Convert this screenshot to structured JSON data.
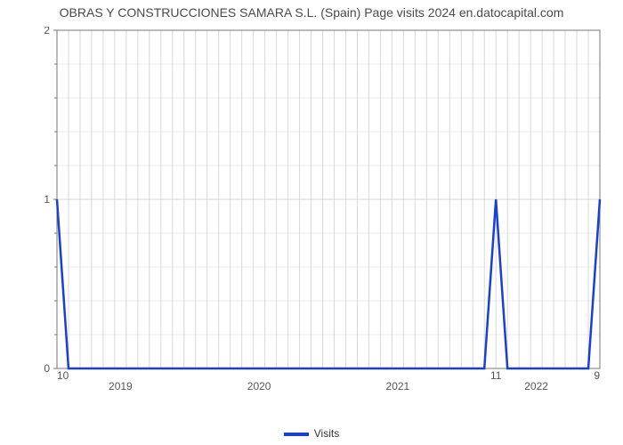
{
  "chart": {
    "type": "line",
    "title": "OBRAS Y CONSTRUCCIONES SAMARA S.L. (Spain) Page visits 2024 en.datocapital.com",
    "title_fontsize": 14,
    "title_color": "#4a4a4a",
    "background_color": "#ffffff",
    "plot_border_color": "#777777",
    "grid_color": "#d8d8d8",
    "minor_grid_color": "#eeeeee",
    "line_color": "#1a3fd6",
    "line_width": 2.5,
    "y": {
      "lim": [
        0,
        2
      ],
      "major_ticks": [
        0,
        1,
        2
      ],
      "minor_ticks_between": 4
    },
    "x": {
      "category_labels": [
        "2019",
        "2020",
        "2021",
        "2022"
      ],
      "points_per_category": 12,
      "total_points": 48
    },
    "series": {
      "name": "Visits",
      "values": [
        1,
        0,
        0,
        0,
        0,
        0,
        0,
        0,
        0,
        0,
        0,
        0,
        0,
        0,
        0,
        0,
        0,
        0,
        0,
        0,
        0,
        0,
        0,
        0,
        0,
        0,
        0,
        0,
        0,
        0,
        0,
        0,
        0,
        0,
        0,
        0,
        0,
        0,
        1,
        0,
        0,
        0,
        0,
        0,
        0,
        0,
        0,
        1
      ]
    },
    "data_labels": [
      {
        "i": 0,
        "text": "10"
      },
      {
        "i": 38,
        "text": "11"
      },
      {
        "i": 47,
        "text": "9"
      }
    ],
    "legend": {
      "label": "Visits",
      "swatch_color": "#1a3fd6",
      "text_color": "#333333"
    }
  }
}
